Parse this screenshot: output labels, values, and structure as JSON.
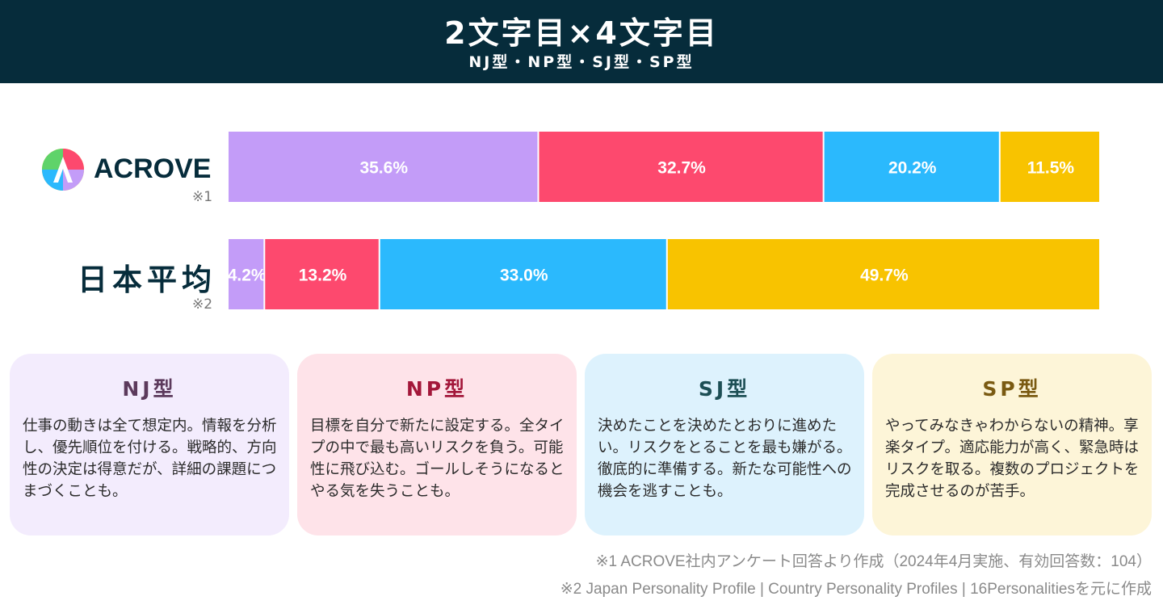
{
  "header": {
    "title": "2文字目×4文字目",
    "subtitle": "NJ型・NP型・SJ型・SP型"
  },
  "rows": {
    "acrove": {
      "logo_text": "ACROVE",
      "note": "※1"
    },
    "japan": {
      "label": "日本平均",
      "note": "※2"
    }
  },
  "colors": {
    "header_bg": "#062c3b",
    "NJ": "#c39cf8",
    "NP": "#fd496e",
    "SJ": "#2bb9fd",
    "SP": "#f8c300"
  },
  "chart_data": {
    "type": "bar",
    "orientation": "horizontal-stacked-100",
    "title": "2文字目×4文字目",
    "subtitle": "NJ型・NP型・SJ型・SP型",
    "categories": [
      "ACROVE",
      "日本平均"
    ],
    "series": [
      {
        "name": "NJ型",
        "values": [
          35.6,
          4.2
        ],
        "labels": [
          "35.6%",
          "4.2%"
        ]
      },
      {
        "name": "NP型",
        "values": [
          32.7,
          13.2
        ],
        "labels": [
          "32.7%",
          "13.2%"
        ]
      },
      {
        "name": "SJ型",
        "values": [
          20.2,
          33.0
        ],
        "labels": [
          "20.2%",
          "33.0%"
        ]
      },
      {
        "name": "SP型",
        "values": [
          11.5,
          49.7
        ],
        "labels": [
          "11.5%",
          "49.7%"
        ]
      }
    ],
    "xlim": [
      0,
      100
    ]
  },
  "cards": [
    {
      "title": "NJ型",
      "bg": "#f3ecfd",
      "title_color": "#5c3a5c",
      "text": "仕事の動きは全て想定内。情報を分析し、優先順位を付ける。戦略的、方向性の決定は得意だが、詳細の課題につまづくことも。"
    },
    {
      "title": "NP型",
      "bg": "#fee3e9",
      "title_color": "#a3173a",
      "text": "目標を自分で新たに設定する。全タイプの中で最も高いリスクを負う。可能性に飛び込む。ゴールしそうになるとやる気を失うことも。"
    },
    {
      "title": "SJ型",
      "bg": "#ddf2fd",
      "title_color": "#1d4f55",
      "text": "決めたことを決めたとおりに進めたい。リスクをとることを最も嫌がる。徹底的に準備する。新たな可能性への機会を逃すことも。"
    },
    {
      "title": "SP型",
      "bg": "#fdf5d8",
      "title_color": "#7a5a12",
      "text": "やってみなきゃわからないの精神。享楽タイプ。適応能力が高く、緊急時はリスクを取る。複数のプロジェクトを完成させるのが苦手。"
    }
  ],
  "footnotes": [
    "※1 ACROVE社内アンケート回答より作成（2024年4月実施、有効回答数：104）",
    "※2 Japan Personality Profile | Country Personality Profiles | 16Personalitiesを元に作成"
  ]
}
